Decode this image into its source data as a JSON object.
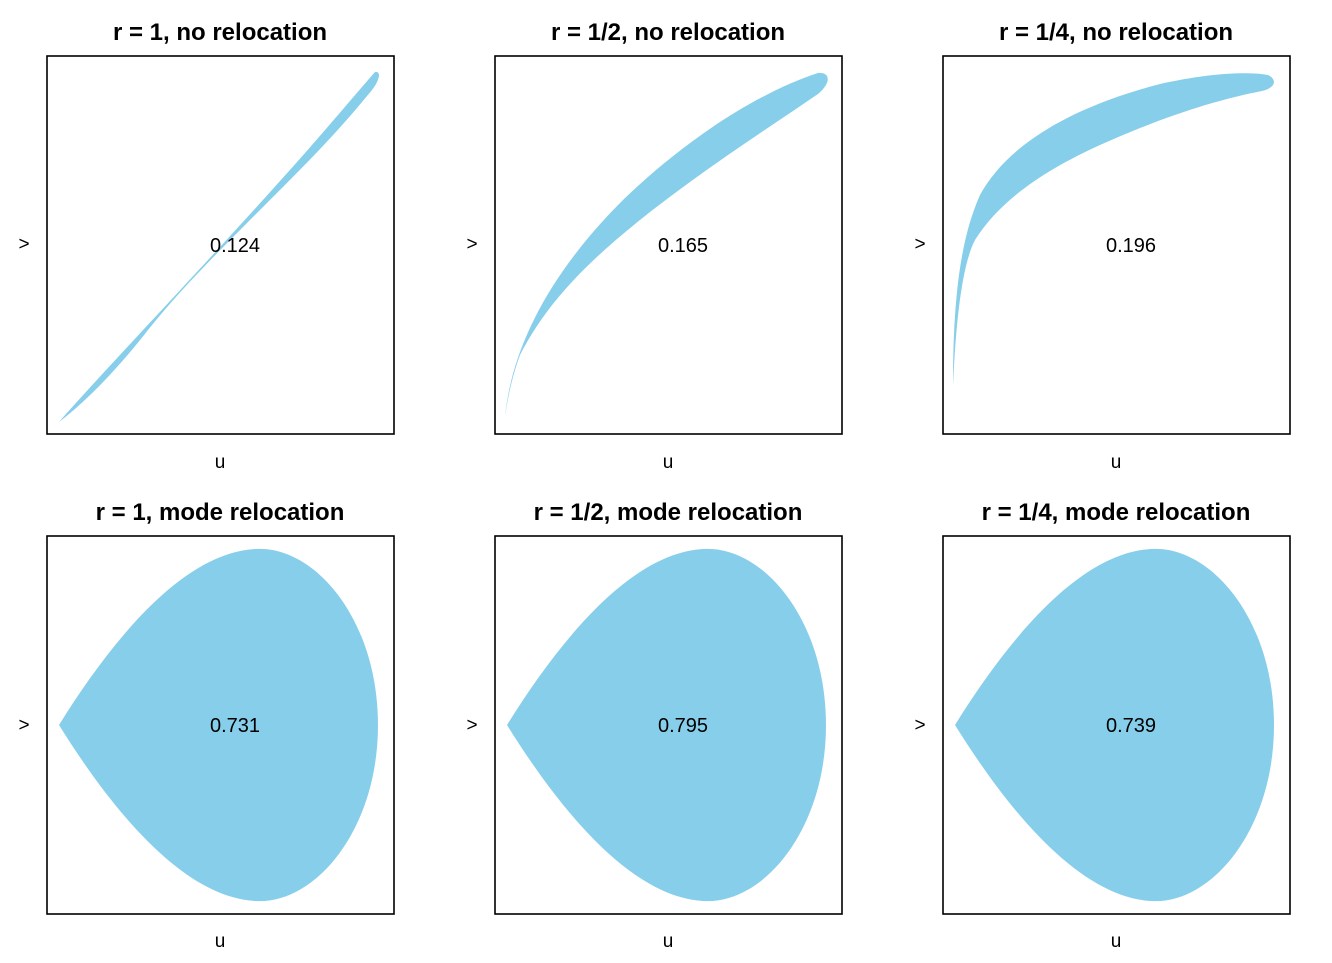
{
  "figure": {
    "fill_color": "#87CEEB",
    "frame_color": "#000000",
    "panels": [
      {
        "id": "p1",
        "title": "r = 1, no relocation",
        "xlabel": "u",
        "ylabel": ">",
        "value": "0.124"
      },
      {
        "id": "p2",
        "title": "r = 1/2, no relocation",
        "xlabel": "u",
        "ylabel": ">",
        "value": "0.165"
      },
      {
        "id": "p3",
        "title": "r = 1/4, no relocation",
        "xlabel": "u",
        "ylabel": ">",
        "value": "0.196"
      },
      {
        "id": "p4",
        "title": "r = 1, mode relocation",
        "xlabel": "u",
        "ylabel": ">",
        "value": "0.731"
      },
      {
        "id": "p5",
        "title": "r = 1/2, mode relocation",
        "xlabel": "u",
        "ylabel": ">",
        "value": "0.795"
      },
      {
        "id": "p6",
        "title": "r = 1/4, mode relocation",
        "xlabel": "u",
        "ylabel": ">",
        "value": "0.739"
      }
    ]
  }
}
